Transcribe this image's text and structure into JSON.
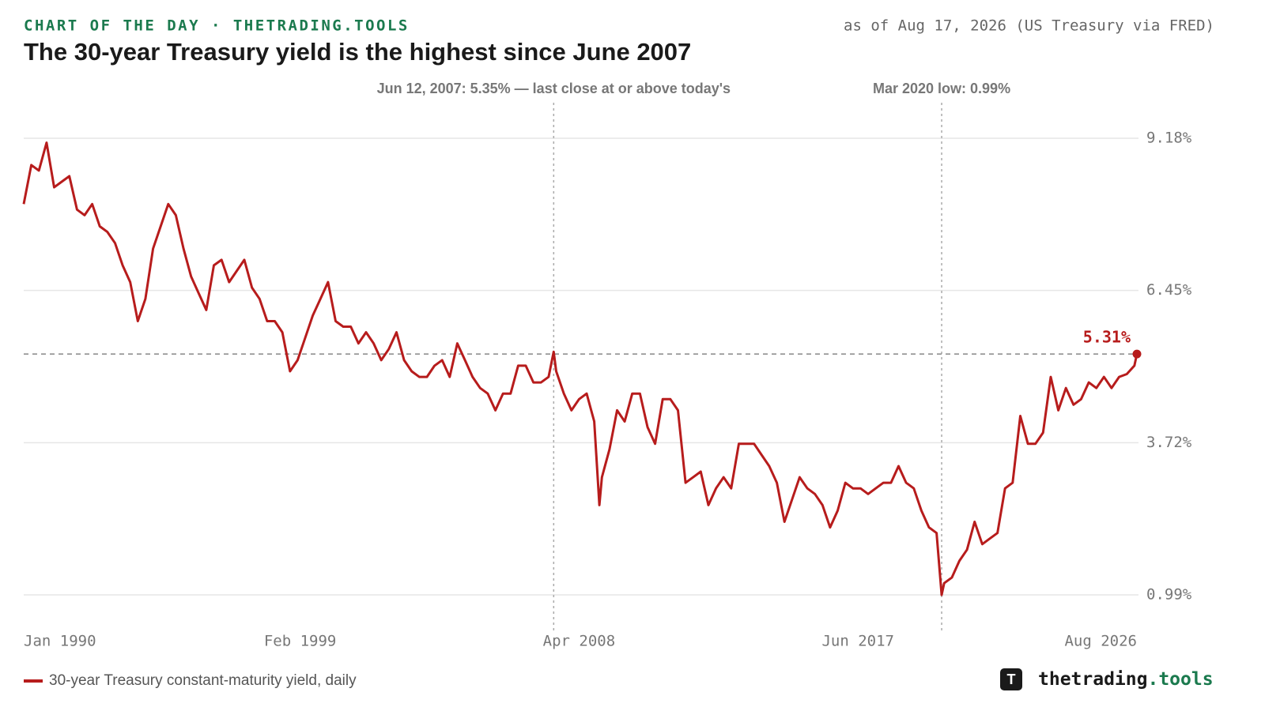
{
  "chart_data": {
    "type": "line",
    "kicker": "CHART OF THE DAY · THETRADING.TOOLS",
    "title": "The 30-year Treasury yield is the highest since June 2007",
    "source": "as of Aug 17, 2026 (US Treasury via FRED)",
    "x": [
      "1990-01",
      "1990-04",
      "1990-07",
      "1990-10",
      "1991-01",
      "1991-04",
      "1991-07",
      "1991-10",
      "1992-01",
      "1992-04",
      "1992-07",
      "1992-10",
      "1993-01",
      "1993-04",
      "1993-07",
      "1993-10",
      "1994-01",
      "1994-04",
      "1994-07",
      "1994-10",
      "1995-01",
      "1995-04",
      "1995-07",
      "1995-10",
      "1996-01",
      "1996-04",
      "1996-07",
      "1996-10",
      "1997-01",
      "1997-04",
      "1997-07",
      "1997-10",
      "1998-01",
      "1998-04",
      "1998-07",
      "1998-10",
      "1999-01",
      "1999-04",
      "1999-07",
      "1999-10",
      "2000-01",
      "2000-04",
      "2000-07",
      "2000-10",
      "2001-01",
      "2001-04",
      "2001-07",
      "2001-10",
      "2002-01",
      "2002-04",
      "2002-07",
      "2002-10",
      "2003-01",
      "2003-04",
      "2003-07",
      "2003-10",
      "2004-01",
      "2004-04",
      "2004-07",
      "2004-10",
      "2005-01",
      "2005-04",
      "2005-07",
      "2005-10",
      "2006-01",
      "2006-04",
      "2006-07",
      "2006-10",
      "2007-01",
      "2007-04",
      "2007-06",
      "2007-07",
      "2007-10",
      "2008-01",
      "2008-04",
      "2008-07",
      "2008-10",
      "2008-12",
      "2009-01",
      "2009-04",
      "2009-07",
      "2009-10",
      "2010-01",
      "2010-04",
      "2010-07",
      "2010-10",
      "2011-01",
      "2011-04",
      "2011-07",
      "2011-10",
      "2012-01",
      "2012-04",
      "2012-07",
      "2012-10",
      "2013-01",
      "2013-04",
      "2013-07",
      "2013-10",
      "2014-01",
      "2014-04",
      "2014-07",
      "2014-10",
      "2015-01",
      "2015-04",
      "2015-07",
      "2015-10",
      "2016-01",
      "2016-04",
      "2016-07",
      "2016-10",
      "2017-01",
      "2017-04",
      "2017-07",
      "2017-10",
      "2018-01",
      "2018-04",
      "2018-07",
      "2018-10",
      "2019-01",
      "2019-04",
      "2019-07",
      "2019-10",
      "2020-01",
      "2020-03",
      "2020-04",
      "2020-07",
      "2020-10",
      "2021-01",
      "2021-04",
      "2021-07",
      "2021-10",
      "2022-01",
      "2022-04",
      "2022-07",
      "2022-10",
      "2023-01",
      "2023-04",
      "2023-07",
      "2023-10",
      "2024-01",
      "2024-04",
      "2024-07",
      "2024-10",
      "2025-01",
      "2025-04",
      "2025-07",
      "2025-10",
      "2026-01",
      "2026-04",
      "2026-07",
      "2026-08"
    ],
    "series": [
      {
        "name": "30-year Treasury constant-maturity yield, daily",
        "color": "#b71c1c",
        "values": [
          8.0,
          8.7,
          8.6,
          9.1,
          8.3,
          8.4,
          8.5,
          7.9,
          7.8,
          8.0,
          7.6,
          7.5,
          7.3,
          6.9,
          6.6,
          5.9,
          6.3,
          7.2,
          7.6,
          8.0,
          7.8,
          7.2,
          6.7,
          6.4,
          6.1,
          6.9,
          7.0,
          6.6,
          6.8,
          7.0,
          6.5,
          6.3,
          5.9,
          5.9,
          5.7,
          5.0,
          5.2,
          5.6,
          6.0,
          6.3,
          6.6,
          5.9,
          5.8,
          5.8,
          5.5,
          5.7,
          5.5,
          5.2,
          5.4,
          5.7,
          5.2,
          5.0,
          4.9,
          4.9,
          5.1,
          5.2,
          4.9,
          5.5,
          5.2,
          4.9,
          4.7,
          4.6,
          4.3,
          4.6,
          4.6,
          5.1,
          5.1,
          4.8,
          4.8,
          4.9,
          5.35,
          5.0,
          4.6,
          4.3,
          4.5,
          4.6,
          4.1,
          2.6,
          3.1,
          3.6,
          4.3,
          4.1,
          4.6,
          4.6,
          4.0,
          3.7,
          4.5,
          4.5,
          4.3,
          3.0,
          3.1,
          3.2,
          2.6,
          2.9,
          3.1,
          2.9,
          3.7,
          3.7,
          3.7,
          3.5,
          3.3,
          3.0,
          2.3,
          2.7,
          3.1,
          2.9,
          2.8,
          2.6,
          2.2,
          2.5,
          3.0,
          2.9,
          2.9,
          2.8,
          2.9,
          3.0,
          3.0,
          3.3,
          3.0,
          2.9,
          2.5,
          2.2,
          2.1,
          0.99,
          1.2,
          1.3,
          1.6,
          1.8,
          2.3,
          1.9,
          2.0,
          2.1,
          2.9,
          3.0,
          4.2,
          3.7,
          3.7,
          3.9,
          4.9,
          4.3,
          4.7,
          4.4,
          4.5,
          4.8,
          4.7,
          4.9,
          4.7,
          4.9,
          4.95,
          5.1,
          5.31
        ]
      }
    ],
    "xlim": [
      "1990-01",
      "2026-08"
    ],
    "xticks": [
      {
        "value": "1990-01",
        "label": "Jan 1990"
      },
      {
        "value": "1999-02",
        "label": "Feb 1999"
      },
      {
        "value": "2008-04",
        "label": "Apr 2008"
      },
      {
        "value": "2017-06",
        "label": "Jun 2017"
      },
      {
        "value": "2026-08",
        "label": "Aug 2026"
      }
    ],
    "ylim": [
      0.5,
      9.7
    ],
    "yticks": [
      {
        "value": 0.99,
        "label": "0.99%"
      },
      {
        "value": 3.72,
        "label": "3.72%"
      },
      {
        "value": 6.45,
        "label": "6.45%"
      },
      {
        "value": 9.18,
        "label": "9.18%"
      }
    ],
    "grid": true,
    "reference_line": {
      "value": 5.31,
      "label": "5.31%"
    },
    "annotations": [
      {
        "text": "Jun 12, 2007: 5.35% — last close at or above today's",
        "x": "2007-06"
      },
      {
        "text": "Mar 2020 low: 0.99%",
        "x": "2020-03"
      }
    ],
    "brand": {
      "logo": "T",
      "name": "thetrading",
      "suffix": ".tools"
    }
  }
}
